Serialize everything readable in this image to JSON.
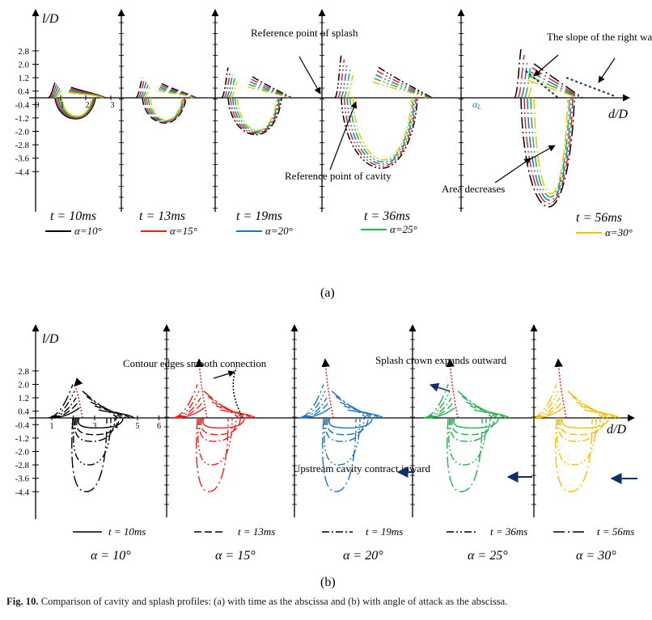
{
  "colors": {
    "a10": "#000000",
    "a15": "#e8201b",
    "a20": "#1c75bc",
    "a25": "#22b14c",
    "a30": "#f5c000",
    "arrow_navy": "#0d2f6e"
  },
  "panel_a": {
    "ylabel": "l/D",
    "xlabel": "d/D",
    "yticks": [
      "2.8",
      "2.0",
      "1.2",
      "0.4",
      "-0.4",
      "-1.2",
      "-2.0",
      "-2.8",
      "-3.6",
      "-4.4"
    ],
    "xticks": [
      "0",
      "1",
      "2",
      "3"
    ],
    "times": [
      "t = 10ms",
      "t = 13ms",
      "t = 19ms",
      "t = 36ms",
      "t = 56ms"
    ],
    "legend": [
      "α=10°",
      "α=15°",
      "α=20°",
      "α=25°",
      "α=30°"
    ],
    "annotations": {
      "ref_splash": "Reference point of splash",
      "ref_cavity": "Reference point of cavity",
      "slope": "The slope of the right wall",
      "area": "Area decreases",
      "alpha_l": "αL"
    },
    "label": "(a)"
  },
  "panel_b": {
    "ylabel": "l/D",
    "xlabel": "d/D",
    "yticks": [
      "2.8",
      "2.0",
      "1.2",
      "0.4",
      "-0.4",
      "-1.2",
      "-2.0",
      "-2.8",
      "-3.6",
      "-4.4"
    ],
    "xticks": [
      "1",
      "2",
      "3",
      "4",
      "5",
      "6"
    ],
    "alphas": [
      "α = 10°",
      "α = 15°",
      "α = 20°",
      "α = 25°",
      "α = 30°"
    ],
    "legend": [
      "t = 10ms",
      "t = 13ms",
      "t = 19ms",
      "t = 36ms",
      "t = 56ms"
    ],
    "annotations": {
      "contour": "Contour edges smooth connection",
      "crown": "Splash crown expands outward",
      "upstream": "Upstream cavity contract inward"
    },
    "label": "(b)"
  },
  "caption": {
    "label": "Fig. 10.",
    "text": "Comparison of cavity and splash profiles: (a) with time as the abscissa and (b) with angle of attack as the abscissa."
  }
}
